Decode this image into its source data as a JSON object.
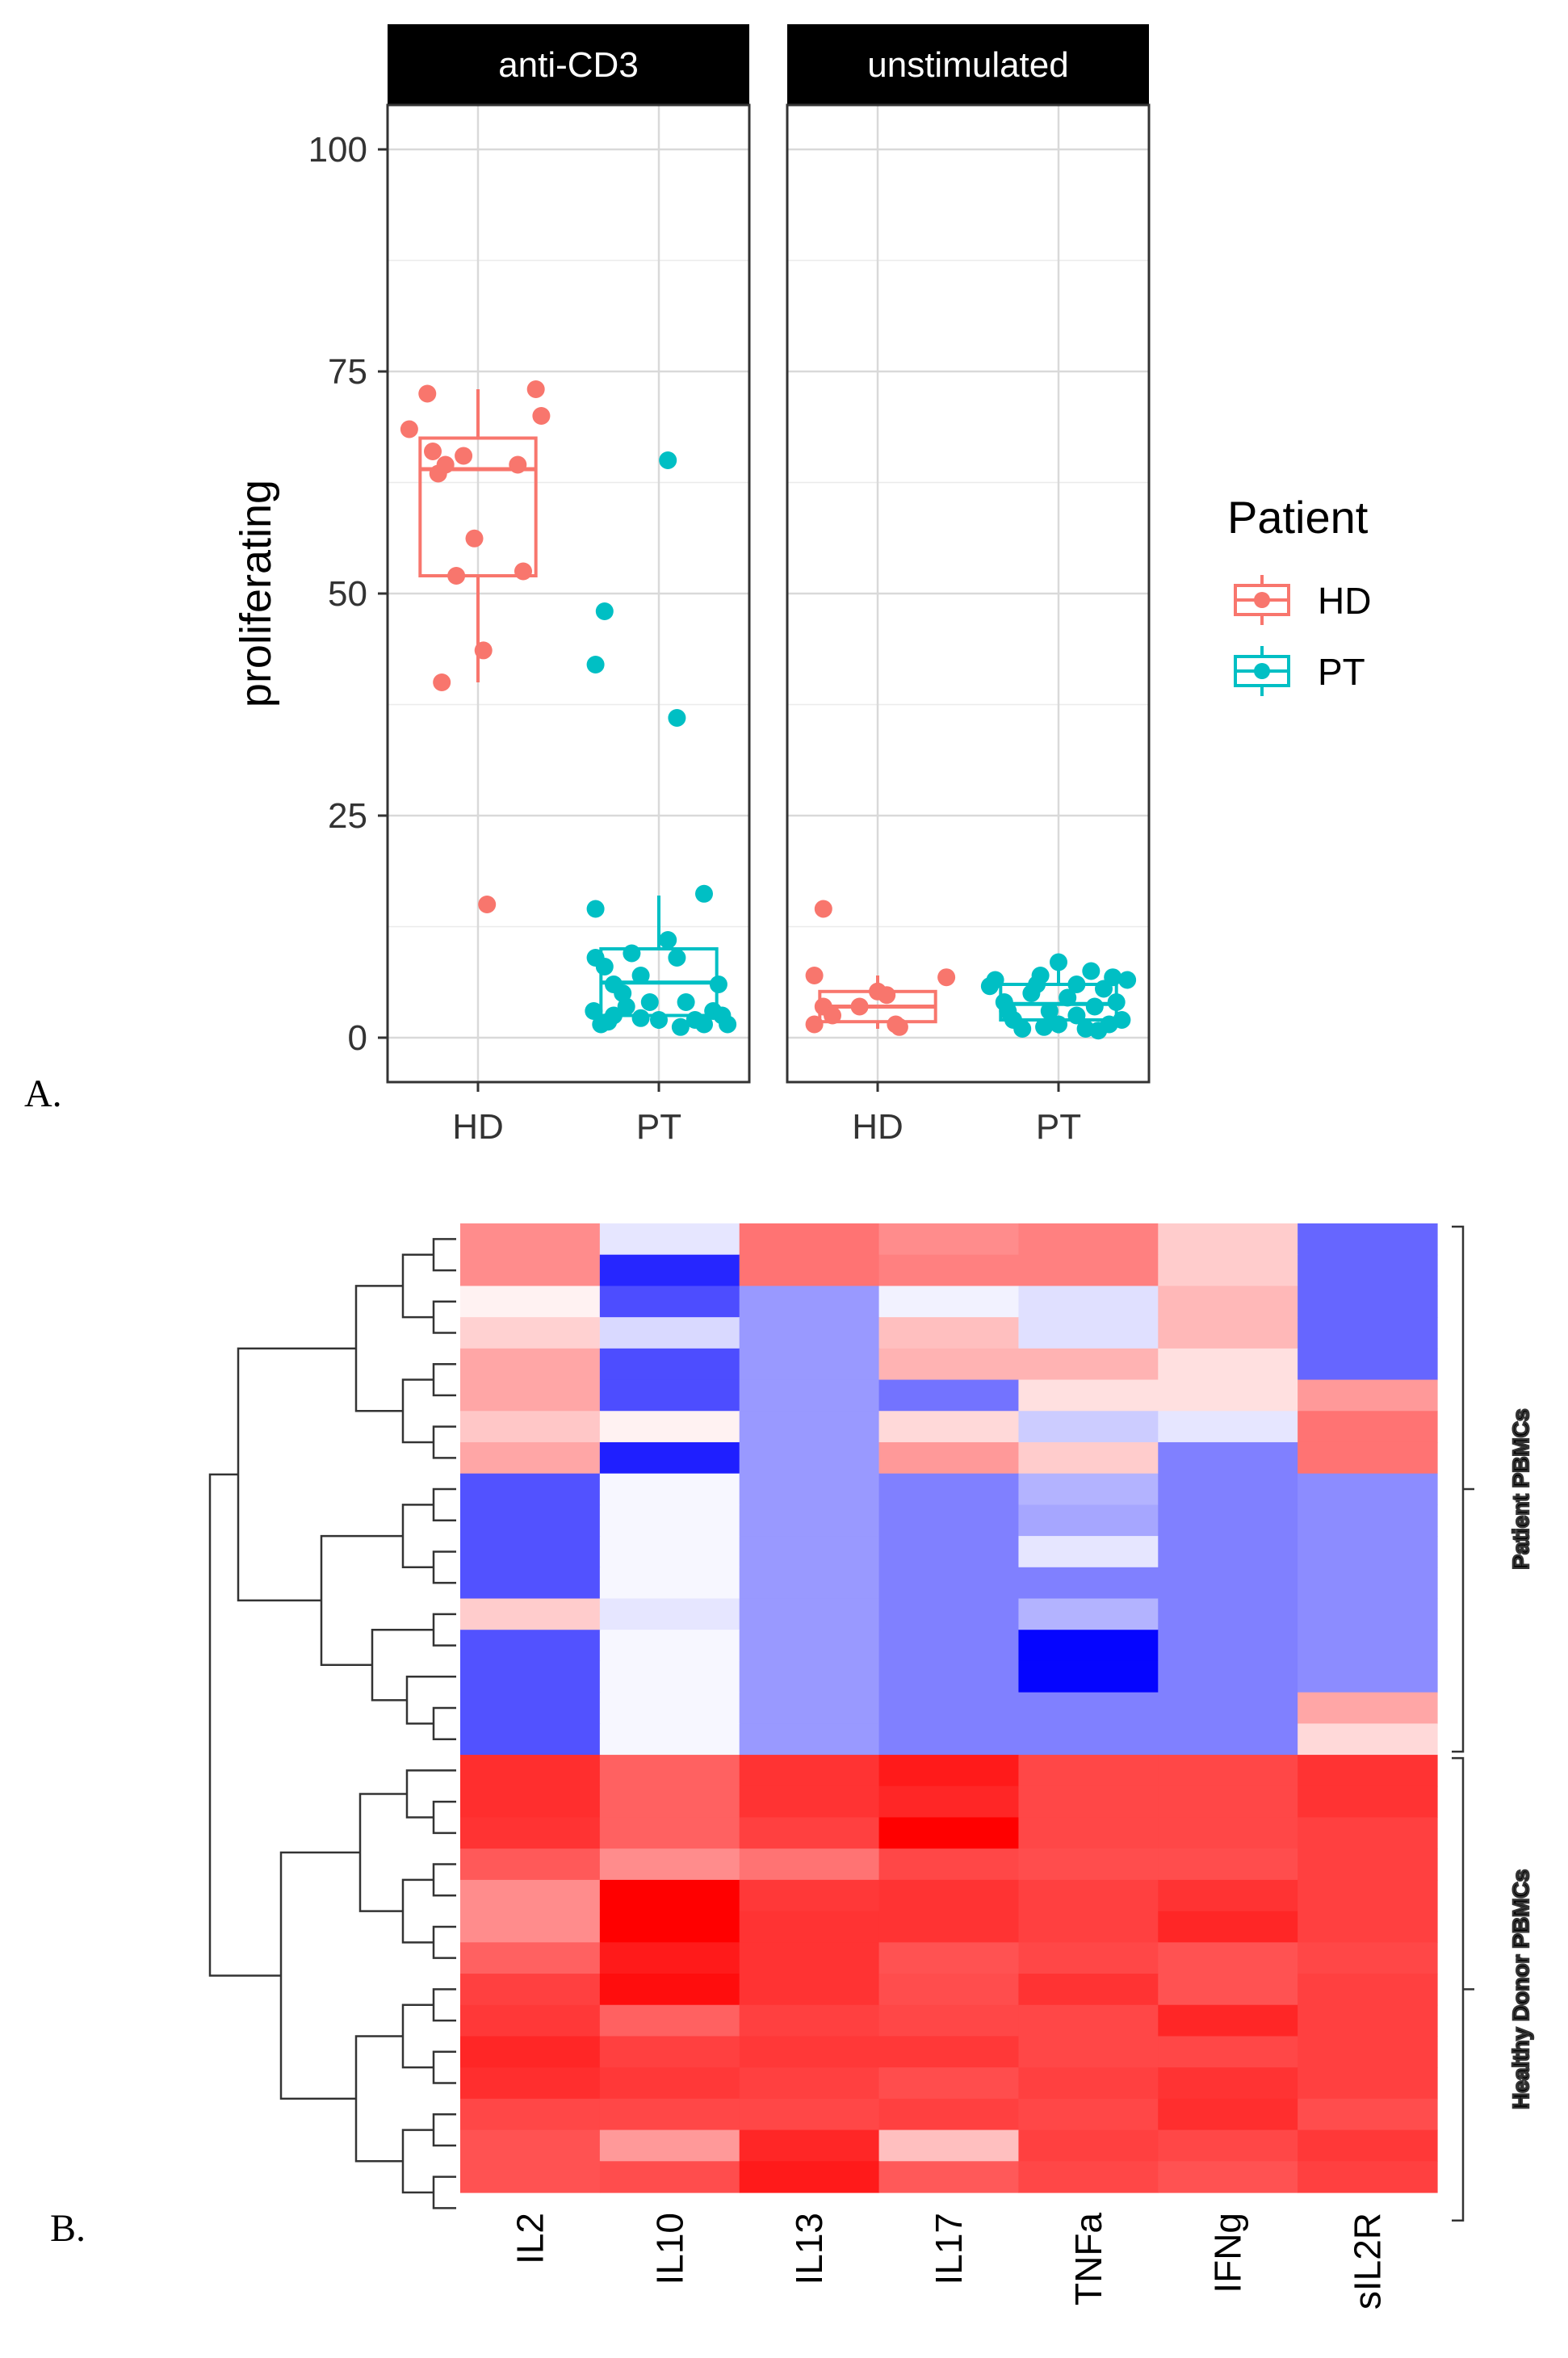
{
  "panel_labels": [
    "A.",
    "B."
  ],
  "chart_data": [
    {
      "type": "scatter",
      "subtype": "boxplot-with-jitter",
      "facets": [
        "anti-CD3",
        "unstimulated"
      ],
      "categories": [
        "HD",
        "PT"
      ],
      "ylabel": "proliferating",
      "xlabel": "",
      "ylim": [
        -5,
        105
      ],
      "yticks": [
        0,
        25,
        50,
        75,
        100
      ],
      "grid": true,
      "legend": {
        "title": "Patient",
        "position": "right",
        "entries": [
          "HD",
          "PT"
        ]
      },
      "colors": {
        "HD": "#f8766d",
        "PT": "#00bfc4"
      },
      "series": [
        {
          "facet": "anti-CD3",
          "group": "HD",
          "box": {
            "min": 40,
            "q1": 52,
            "median": 64,
            "q3": 67.5,
            "max": 73
          },
          "points": [
            [
              -0.38,
              68.5
            ],
            [
              -0.28,
              72.5
            ],
            [
              -0.25,
              66
            ],
            [
              -0.22,
              63.5
            ],
            [
              -0.18,
              64.5
            ],
            [
              -0.08,
              65.5
            ],
            [
              -0.02,
              56.2
            ],
            [
              0.03,
              43.6
            ],
            [
              -0.12,
              52
            ],
            [
              -0.2,
              40
            ],
            [
              0.05,
              15
            ],
            [
              0.22,
              64.5
            ],
            [
              0.25,
              52.5
            ],
            [
              0.32,
              73
            ],
            [
              0.35,
              70
            ]
          ]
        },
        {
          "facet": "anti-CD3",
          "group": "PT",
          "box": {
            "min": 1,
            "q1": 2.5,
            "median": 6.2,
            "q3": 10,
            "max": 16
          },
          "points": [
            [
              -0.35,
              14.5
            ],
            [
              -0.35,
              42
            ],
            [
              -0.3,
              48
            ],
            [
              0.05,
              65
            ],
            [
              0.1,
              36
            ],
            [
              0.25,
              16.2
            ],
            [
              -0.35,
              9
            ],
            [
              -0.3,
              8
            ],
            [
              -0.25,
              6
            ],
            [
              -0.2,
              5
            ],
            [
              -0.36,
              3
            ],
            [
              -0.32,
              1.5
            ],
            [
              -0.25,
              2.5
            ],
            [
              -0.15,
              9.5
            ],
            [
              -0.1,
              7
            ],
            [
              -0.05,
              4
            ],
            [
              0,
              2
            ],
            [
              0.05,
              11
            ],
            [
              0.1,
              9
            ],
            [
              0.15,
              4
            ],
            [
              0.2,
              2
            ],
            [
              0.25,
              1.5
            ],
            [
              0.3,
              3
            ],
            [
              0.33,
              6
            ],
            [
              0.35,
              2.5
            ],
            [
              0.38,
              1.5
            ],
            [
              -0.28,
              1.8
            ],
            [
              -0.1,
              2.2
            ],
            [
              0.12,
              1.2
            ],
            [
              -0.18,
              3.5
            ]
          ]
        },
        {
          "facet": "unstimulated",
          "group": "HD",
          "box": {
            "min": 1,
            "q1": 1.8,
            "median": 3.5,
            "q3": 5.2,
            "max": 7
          },
          "points": [
            [
              -0.3,
              14.5
            ],
            [
              -0.35,
              7
            ],
            [
              -0.3,
              3.5
            ],
            [
              -0.35,
              1.5
            ],
            [
              -0.25,
              2.5
            ],
            [
              0,
              5.2
            ],
            [
              0.05,
              4.8
            ],
            [
              0.1,
              1.5
            ],
            [
              0.12,
              1.2
            ],
            [
              0.38,
              6.8
            ],
            [
              -0.1,
              3.5
            ]
          ]
        },
        {
          "facet": "unstimulated",
          "group": "PT",
          "box": {
            "min": 0.5,
            "q1": 2,
            "median": 3.8,
            "q3": 6,
            "max": 8.5
          },
          "points": [
            [
              -0.38,
              5.8
            ],
            [
              -0.35,
              6.5
            ],
            [
              -0.3,
              4
            ],
            [
              -0.25,
              2
            ],
            [
              -0.2,
              1
            ],
            [
              -0.15,
              5
            ],
            [
              -0.1,
              7
            ],
            [
              -0.05,
              3
            ],
            [
              0,
              8.5
            ],
            [
              0,
              1.5
            ],
            [
              0.05,
              4.5
            ],
            [
              0.1,
              6
            ],
            [
              0.1,
              2.5
            ],
            [
              0.15,
              1
            ],
            [
              0.18,
              7.5
            ],
            [
              0.2,
              3.5
            ],
            [
              0.25,
              5.5
            ],
            [
              0.28,
              1.5
            ],
            [
              0.3,
              6.8
            ],
            [
              0.32,
              4
            ],
            [
              0.35,
              2
            ],
            [
              0.38,
              6.5
            ],
            [
              -0.28,
              3
            ],
            [
              -0.12,
              6
            ],
            [
              0.22,
              0.8
            ],
            [
              -0.08,
              1.2
            ]
          ]
        }
      ]
    },
    {
      "type": "heatmap",
      "columns": [
        "IL2",
        "IL10",
        "IL13",
        "IL17",
        "TNFa",
        "IFNg",
        "sIL2R"
      ],
      "row_groups": [
        {
          "label": "Patient PBMCs",
          "rows": [
            0,
            17
          ]
        },
        {
          "label": "Healthy Donor PBMCs",
          "rows": [
            17,
            32
          ]
        }
      ],
      "color_scale": {
        "low": "#0000ff",
        "mid": "#ffffff",
        "high": "#ff0000",
        "range": [
          -1,
          1
        ]
      },
      "values": [
        [
          0.45,
          -0.1,
          0.55,
          0.45,
          0.5,
          0.2,
          -0.6
        ],
        [
          0.45,
          -0.85,
          0.55,
          0.5,
          0.5,
          0.2,
          -0.6
        ],
        [
          0.05,
          -0.7,
          -0.4,
          -0.05,
          -0.12,
          0.28,
          -0.6
        ],
        [
          0.18,
          -0.15,
          -0.4,
          0.25,
          -0.12,
          0.28,
          -0.6
        ],
        [
          0.35,
          -0.7,
          -0.4,
          0.3,
          0.3,
          0.12,
          -0.6
        ],
        [
          0.35,
          -0.7,
          -0.4,
          -0.55,
          0.12,
          0.12,
          0.4
        ],
        [
          0.22,
          0.05,
          -0.4,
          0.15,
          -0.2,
          -0.1,
          0.55
        ],
        [
          0.35,
          -0.88,
          -0.4,
          0.4,
          0.2,
          -0.5,
          0.55
        ],
        [
          -0.68,
          -0.03,
          -0.4,
          -0.5,
          -0.3,
          -0.5,
          -0.45
        ],
        [
          -0.68,
          -0.03,
          -0.4,
          -0.5,
          -0.35,
          -0.5,
          -0.45
        ],
        [
          -0.68,
          -0.03,
          -0.4,
          -0.5,
          -0.1,
          -0.5,
          -0.45
        ],
        [
          -0.68,
          -0.03,
          -0.4,
          -0.5,
          -0.5,
          -0.5,
          -0.45
        ],
        [
          0.2,
          -0.1,
          -0.4,
          -0.5,
          -0.3,
          -0.5,
          -0.45
        ],
        [
          -0.68,
          -0.03,
          -0.4,
          -0.5,
          -0.98,
          -0.5,
          -0.45
        ],
        [
          -0.68,
          -0.03,
          -0.4,
          -0.5,
          -0.98,
          -0.5,
          -0.45
        ],
        [
          -0.68,
          -0.03,
          -0.4,
          -0.5,
          -0.5,
          -0.5,
          0.35
        ],
        [
          -0.68,
          -0.03,
          -0.4,
          -0.5,
          -0.5,
          -0.5,
          0.15
        ],
        [
          0.82,
          0.62,
          0.8,
          0.9,
          0.72,
          0.72,
          0.8
        ],
        [
          0.82,
          0.62,
          0.8,
          0.85,
          0.72,
          0.72,
          0.8
        ],
        [
          0.8,
          0.62,
          0.75,
          1.0,
          0.72,
          0.72,
          0.75
        ],
        [
          0.65,
          0.45,
          0.55,
          0.72,
          0.7,
          0.7,
          0.75
        ],
        [
          0.45,
          1.0,
          0.78,
          0.8,
          0.75,
          0.8,
          0.75
        ],
        [
          0.45,
          1.0,
          0.8,
          0.8,
          0.75,
          0.85,
          0.75
        ],
        [
          0.62,
          0.9,
          0.8,
          0.68,
          0.72,
          0.68,
          0.72
        ],
        [
          0.75,
          0.95,
          0.8,
          0.7,
          0.8,
          0.68,
          0.75
        ],
        [
          0.78,
          0.62,
          0.75,
          0.72,
          0.72,
          0.85,
          0.75
        ],
        [
          0.85,
          0.75,
          0.78,
          0.78,
          0.72,
          0.72,
          0.75
        ],
        [
          0.82,
          0.78,
          0.75,
          0.7,
          0.75,
          0.8,
          0.75
        ],
        [
          0.72,
          0.72,
          0.72,
          0.75,
          0.72,
          0.82,
          0.7
        ],
        [
          0.68,
          0.4,
          0.85,
          0.25,
          0.75,
          0.72,
          0.78
        ],
        [
          0.68,
          0.7,
          0.9,
          0.65,
          0.72,
          0.68,
          0.75
        ]
      ]
    }
  ]
}
